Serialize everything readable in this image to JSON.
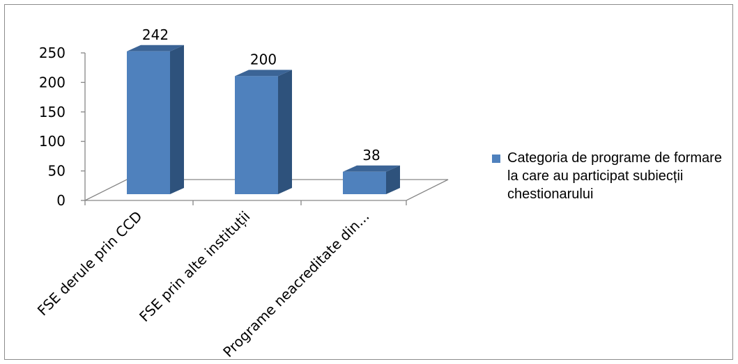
{
  "chart_data": {
    "type": "bar",
    "categories": [
      "FSE derule prin CCD",
      "FSE prin alte instituții",
      "Programe neacreditate din..."
    ],
    "series": [
      {
        "name": "Categoria de programe de formare la care au participat subiecții chestionarului",
        "values": [
          242,
          200,
          38
        ],
        "color": "#4f81bd"
      }
    ],
    "yticks": [
      "0",
      "50",
      "100",
      "150",
      "200",
      "250"
    ],
    "ylim": [
      0,
      250
    ],
    "data_labels": [
      "242",
      "200",
      "38"
    ],
    "grid": false,
    "legend_position": "right",
    "style": "3d-column",
    "colors": {
      "front": "#4f81bd",
      "side": "#2e527c",
      "top": "#3b6496",
      "axis": "#868686"
    }
  }
}
